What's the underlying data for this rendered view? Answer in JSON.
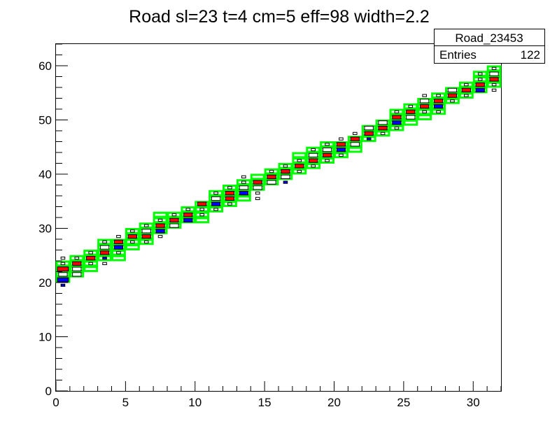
{
  "chart_data": {
    "type": "heatmap",
    "title": "Road sl=23 t=4 cm=5 eff=98 width=2.2",
    "xlabel": "",
    "ylabel": "",
    "xlim": [
      0,
      32
    ],
    "ylim": [
      0,
      64
    ],
    "x_ticks": [
      0,
      5,
      10,
      15,
      20,
      25,
      30
    ],
    "y_ticks": [
      0,
      10,
      20,
      30,
      40,
      50,
      60
    ],
    "stats_box": {
      "name": "Road_23453",
      "entries_label": "Entries",
      "entries_value": "122"
    },
    "colors": {
      "road": "#00ff00",
      "primary_hit": "#ff0000",
      "secondary_hit": "#0000ff",
      "box_outline": "#000000"
    },
    "road_bins": [
      [
        0,
        20
      ],
      [
        0,
        21
      ],
      [
        0,
        22
      ],
      [
        0,
        23
      ],
      [
        1,
        21
      ],
      [
        1,
        22
      ],
      [
        1,
        23
      ],
      [
        1,
        24
      ],
      [
        2,
        22
      ],
      [
        2,
        23
      ],
      [
        2,
        24
      ],
      [
        2,
        25
      ],
      [
        3,
        24
      ],
      [
        3,
        25
      ],
      [
        3,
        26
      ],
      [
        3,
        27
      ],
      [
        4,
        24
      ],
      [
        4,
        25
      ],
      [
        4,
        26
      ],
      [
        4,
        27
      ],
      [
        5,
        26
      ],
      [
        5,
        27
      ],
      [
        5,
        28
      ],
      [
        5,
        29
      ],
      [
        6,
        27
      ],
      [
        6,
        28
      ],
      [
        6,
        29
      ],
      [
        6,
        30
      ],
      [
        7,
        29
      ],
      [
        7,
        30
      ],
      [
        7,
        31
      ],
      [
        7,
        32
      ],
      [
        8,
        30
      ],
      [
        8,
        31
      ],
      [
        8,
        32
      ],
      [
        9,
        31
      ],
      [
        9,
        32
      ],
      [
        9,
        33
      ],
      [
        10,
        31
      ],
      [
        10,
        32
      ],
      [
        10,
        33
      ],
      [
        10,
        34
      ],
      [
        11,
        33
      ],
      [
        11,
        34
      ],
      [
        11,
        35
      ],
      [
        11,
        36
      ],
      [
        12,
        34
      ],
      [
        12,
        35
      ],
      [
        12,
        36
      ],
      [
        12,
        37
      ],
      [
        13,
        35
      ],
      [
        13,
        36
      ],
      [
        13,
        37
      ],
      [
        13,
        38
      ],
      [
        14,
        37
      ],
      [
        14,
        38
      ],
      [
        14,
        39
      ],
      [
        15,
        38
      ],
      [
        15,
        39
      ],
      [
        15,
        40
      ],
      [
        16,
        39
      ],
      [
        16,
        40
      ],
      [
        16,
        41
      ],
      [
        17,
        40
      ],
      [
        17,
        41
      ],
      [
        17,
        42
      ],
      [
        17,
        43
      ],
      [
        18,
        41
      ],
      [
        18,
        42
      ],
      [
        18,
        43
      ],
      [
        18,
        44
      ],
      [
        19,
        42
      ],
      [
        19,
        43
      ],
      [
        19,
        44
      ],
      [
        19,
        45
      ],
      [
        20,
        43
      ],
      [
        20,
        44
      ],
      [
        20,
        45
      ],
      [
        21,
        44
      ],
      [
        21,
        45
      ],
      [
        21,
        46
      ],
      [
        22,
        46
      ],
      [
        22,
        47
      ],
      [
        22,
        48
      ],
      [
        23,
        47
      ],
      [
        23,
        48
      ],
      [
        23,
        49
      ],
      [
        24,
        48
      ],
      [
        24,
        49
      ],
      [
        24,
        50
      ],
      [
        24,
        51
      ],
      [
        25,
        49
      ],
      [
        25,
        50
      ],
      [
        25,
        51
      ],
      [
        25,
        52
      ],
      [
        26,
        50
      ],
      [
        26,
        51
      ],
      [
        26,
        52
      ],
      [
        26,
        53
      ],
      [
        27,
        51
      ],
      [
        27,
        52
      ],
      [
        27,
        53
      ],
      [
        27,
        54
      ],
      [
        28,
        53
      ],
      [
        28,
        54
      ],
      [
        28,
        55
      ],
      [
        29,
        54
      ],
      [
        29,
        55
      ],
      [
        29,
        56
      ],
      [
        30,
        55
      ],
      [
        30,
        56
      ],
      [
        30,
        57
      ],
      [
        30,
        58
      ],
      [
        31,
        56
      ],
      [
        31,
        57
      ],
      [
        31,
        58
      ],
      [
        31,
        59
      ]
    ],
    "cells": [
      [
        0,
        22,
        3,
        "red"
      ],
      [
        0,
        21,
        2,
        "white"
      ],
      [
        0,
        20,
        3,
        "blue"
      ],
      [
        0,
        23,
        1,
        "white"
      ],
      [
        0,
        19,
        1,
        "blue"
      ],
      [
        0,
        24,
        1,
        "white"
      ],
      [
        1,
        23,
        2,
        "red"
      ],
      [
        1,
        22,
        2,
        "white"
      ],
      [
        1,
        21,
        2,
        "white"
      ],
      [
        1,
        24,
        1,
        "white"
      ],
      [
        2,
        24,
        2,
        "red"
      ],
      [
        2,
        23,
        1,
        "white"
      ],
      [
        2,
        25,
        1,
        "white"
      ],
      [
        3,
        25,
        2,
        "red"
      ],
      [
        3,
        26,
        2,
        "white"
      ],
      [
        3,
        24,
        1,
        "blue"
      ],
      [
        3,
        27,
        1,
        "white"
      ],
      [
        3,
        23,
        1,
        "white"
      ],
      [
        4,
        27,
        2,
        "red"
      ],
      [
        4,
        26,
        2,
        "blue"
      ],
      [
        4,
        25,
        1,
        "white"
      ],
      [
        4,
        28,
        1,
        "white"
      ],
      [
        5,
        28,
        2,
        "red"
      ],
      [
        5,
        27,
        1,
        "white"
      ],
      [
        5,
        29,
        1,
        "white"
      ],
      [
        6,
        28,
        2,
        "red"
      ],
      [
        6,
        29,
        2,
        "white"
      ],
      [
        6,
        30,
        1,
        "white"
      ],
      [
        6,
        27,
        1,
        "white"
      ],
      [
        7,
        30,
        2,
        "red"
      ],
      [
        7,
        29,
        2,
        "blue"
      ],
      [
        7,
        31,
        1,
        "white"
      ],
      [
        7,
        28,
        1,
        "white"
      ],
      [
        8,
        31,
        2,
        "red"
      ],
      [
        8,
        30,
        2,
        "white"
      ],
      [
        8,
        32,
        1,
        "white"
      ],
      [
        9,
        32,
        2,
        "red"
      ],
      [
        9,
        31,
        2,
        "blue"
      ],
      [
        9,
        33,
        1,
        "white"
      ],
      [
        10,
        34,
        2,
        "red"
      ],
      [
        10,
        33,
        1,
        "white"
      ],
      [
        10,
        32,
        1,
        "white"
      ],
      [
        11,
        35,
        2,
        "white"
      ],
      [
        11,
        34,
        2,
        "blue"
      ],
      [
        11,
        36,
        1,
        "white"
      ],
      [
        11,
        33,
        1,
        "white"
      ],
      [
        12,
        36,
        2,
        "red"
      ],
      [
        12,
        35,
        2,
        "red"
      ],
      [
        12,
        37,
        1,
        "white"
      ],
      [
        12,
        34,
        1,
        "white"
      ],
      [
        13,
        37,
        2,
        "white"
      ],
      [
        13,
        36,
        2,
        "blue"
      ],
      [
        13,
        38,
        1,
        "white"
      ],
      [
        13,
        39,
        1,
        "white"
      ],
      [
        14,
        38,
        2,
        "red"
      ],
      [
        14,
        37,
        2,
        "white"
      ],
      [
        14,
        36,
        1,
        "white"
      ],
      [
        14,
        35,
        1,
        "white"
      ],
      [
        15,
        39,
        2,
        "red"
      ],
      [
        15,
        38,
        2,
        "white"
      ],
      [
        15,
        40,
        1,
        "white"
      ],
      [
        16,
        40,
        2,
        "red"
      ],
      [
        16,
        39,
        2,
        "white"
      ],
      [
        16,
        41,
        1,
        "white"
      ],
      [
        16,
        38,
        1,
        "blue"
      ],
      [
        17,
        41,
        2,
        "red"
      ],
      [
        17,
        42,
        1,
        "white"
      ],
      [
        17,
        40,
        1,
        "white"
      ],
      [
        18,
        42,
        2,
        "red"
      ],
      [
        18,
        43,
        2,
        "white"
      ],
      [
        18,
        44,
        1,
        "white"
      ],
      [
        18,
        41,
        1,
        "white"
      ],
      [
        19,
        43,
        2,
        "red"
      ],
      [
        19,
        44,
        2,
        "white"
      ],
      [
        19,
        42,
        1,
        "white"
      ],
      [
        19,
        45,
        1,
        "white"
      ],
      [
        20,
        45,
        2,
        "red"
      ],
      [
        20,
        44,
        2,
        "blue"
      ],
      [
        20,
        46,
        1,
        "white"
      ],
      [
        20,
        43,
        1,
        "white"
      ],
      [
        21,
        46,
        2,
        "red"
      ],
      [
        21,
        45,
        2,
        "white"
      ],
      [
        21,
        47,
        1,
        "white"
      ],
      [
        22,
        47,
        2,
        "red"
      ],
      [
        22,
        48,
        2,
        "white"
      ],
      [
        22,
        46,
        1,
        "blue"
      ],
      [
        23,
        48,
        2,
        "red"
      ],
      [
        23,
        49,
        2,
        "white"
      ],
      [
        23,
        47,
        1,
        "white"
      ],
      [
        24,
        50,
        2,
        "red"
      ],
      [
        24,
        49,
        2,
        "blue"
      ],
      [
        24,
        51,
        1,
        "white"
      ],
      [
        24,
        48,
        1,
        "white"
      ],
      [
        25,
        51,
        2,
        "red"
      ],
      [
        25,
        50,
        2,
        "white"
      ],
      [
        25,
        52,
        1,
        "white"
      ],
      [
        26,
        52,
        2,
        "red"
      ],
      [
        26,
        53,
        2,
        "white"
      ],
      [
        26,
        51,
        1,
        "white"
      ],
      [
        26,
        54,
        1,
        "white"
      ],
      [
        27,
        53,
        2,
        "red"
      ],
      [
        27,
        52,
        2,
        "blue"
      ],
      [
        27,
        54,
        1,
        "white"
      ],
      [
        27,
        51,
        1,
        "white"
      ],
      [
        28,
        54,
        2,
        "red"
      ],
      [
        28,
        55,
        2,
        "white"
      ],
      [
        28,
        53,
        1,
        "white"
      ],
      [
        29,
        55,
        2,
        "red"
      ],
      [
        29,
        56,
        1,
        "white"
      ],
      [
        29,
        54,
        1,
        "white"
      ],
      [
        30,
        56,
        2,
        "red"
      ],
      [
        30,
        55,
        2,
        "blue"
      ],
      [
        30,
        57,
        1,
        "white"
      ],
      [
        30,
        58,
        1,
        "white"
      ],
      [
        31,
        57,
        2,
        "red"
      ],
      [
        31,
        58,
        2,
        "white"
      ],
      [
        31,
        56,
        1,
        "white"
      ],
      [
        31,
        59,
        1,
        "white"
      ],
      [
        31,
        55,
        1,
        "white"
      ]
    ]
  }
}
